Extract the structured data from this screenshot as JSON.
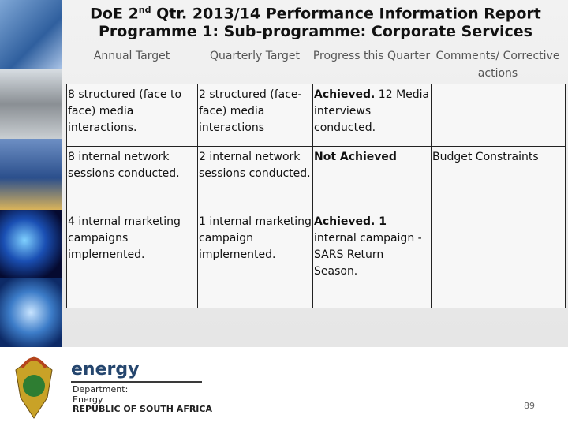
{
  "header": {
    "title_line1": {
      "before": "DoE 2",
      "sup": "nd",
      "after": "  Qtr. 2013/14 Performance Information Report"
    },
    "title_line2": "Programme 1: Sub-programme: Corporate Services"
  },
  "table": {
    "columns": [
      "Annual Target",
      "Quarterly Target",
      "Progress this Quarter",
      "Comments/ Corrective actions"
    ],
    "rows": [
      [
        {
          "text": "8 structured (face to face) media interactions."
        },
        {
          "text": "2 structured (face-face) media interactions"
        },
        {
          "bold": "Achieved.",
          "text": " 12 Media interviews conducted."
        },
        {
          "text": ""
        }
      ],
      [
        {
          "text": "8 internal network sessions conducted."
        },
        {
          "text": "2 internal network sessions conducted."
        },
        {
          "bold": "Not Achieved"
        },
        {
          "text": "Budget Constraints"
        }
      ],
      [
        {
          "text": "4 internal marketing campaigns implemented."
        },
        {
          "text": "1 internal marketing campaign implemented."
        },
        {
          "bold": "Achieved. 1",
          "text": " internal campaign - SARS Return Season."
        },
        {
          "text": ""
        }
      ]
    ]
  },
  "footer": {
    "brand": "energy",
    "dept_label": "Department:",
    "dept_name": "Energy",
    "country": "REPUBLIC OF SOUTH AFRICA",
    "page_number": "89"
  }
}
